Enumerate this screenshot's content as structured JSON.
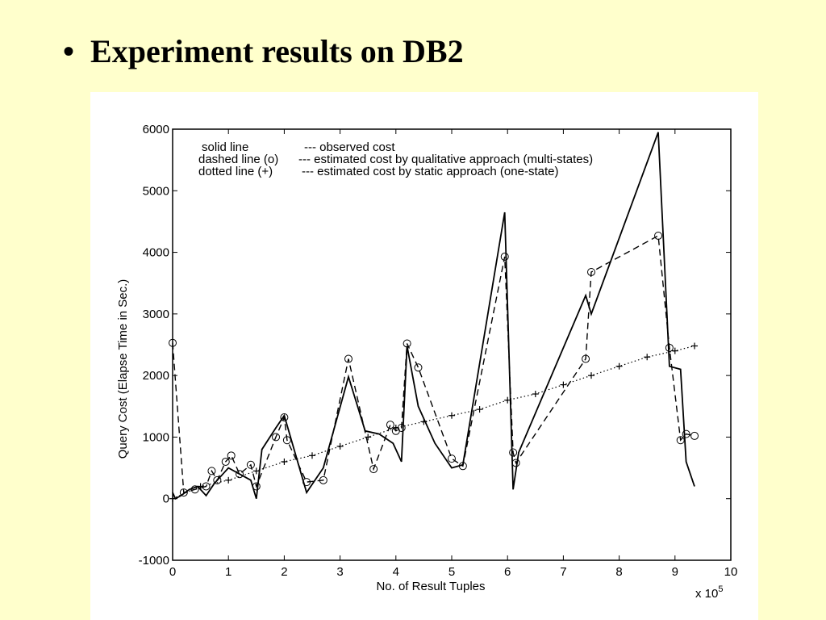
{
  "slide": {
    "bullet": "•",
    "title": "Experiment results on DB2"
  },
  "chart_data": {
    "type": "line",
    "title": "",
    "xlabel": "No. of Result Tuples",
    "ylabel": "Query Cost (Elapse Time in Sec.)",
    "x_multiplier_label": "x 10^5",
    "xlim": [
      0,
      10
    ],
    "ylim": [
      -1000,
      6000
    ],
    "x_ticks": [
      "0",
      "1",
      "2",
      "3",
      "4",
      "5",
      "6",
      "7",
      "8",
      "9",
      "10"
    ],
    "y_ticks": [
      "-1000",
      "0",
      "1000",
      "2000",
      "3000",
      "4000",
      "5000",
      "6000"
    ],
    "grid": false,
    "legend_position": "top-left",
    "legend": [
      {
        "key": "solid line",
        "desc": "--- observed cost"
      },
      {
        "key": "dashed line (o)",
        "desc": "--- estimated cost by qualitative approach (multi-states)"
      },
      {
        "key": "dotted line (+)",
        "desc": "--- estimated cost by static approach (one-state)"
      }
    ],
    "series": [
      {
        "style": "solid",
        "x": [
          0,
          0.05,
          0.15,
          0.3,
          0.45,
          0.6,
          0.75,
          0.9,
          1.0,
          1.2,
          1.4,
          1.5,
          1.6,
          1.85,
          2.0,
          2.4,
          2.7,
          3.15,
          3.45,
          3.7,
          3.95,
          4.1,
          4.2,
          4.4,
          4.7,
          5.0,
          5.2,
          5.95,
          6.1,
          6.2,
          7.4,
          7.5,
          8.7,
          8.9,
          9.1,
          9.2,
          9.35
        ],
        "values": [
          100,
          0,
          50,
          150,
          200,
          50,
          250,
          400,
          500,
          400,
          300,
          0,
          800,
          1150,
          1350,
          100,
          500,
          1980,
          1100,
          1050,
          900,
          600,
          2480,
          1500,
          900,
          500,
          550,
          4650,
          150,
          750,
          3300,
          3000,
          5950,
          2150,
          2100,
          600,
          200
        ]
      },
      {
        "style": "dashed",
        "marker": "o",
        "x": [
          0,
          0.2,
          0.4,
          0.6,
          0.7,
          0.8,
          0.95,
          1.05,
          1.2,
          1.4,
          1.5,
          1.85,
          2.0,
          2.05,
          2.4,
          2.7,
          3.15,
          3.6,
          3.9,
          4.0,
          4.1,
          4.2,
          4.4,
          5.0,
          5.2,
          5.95,
          6.1,
          6.15,
          7.4,
          7.5,
          8.7,
          8.9,
          9.1,
          9.2,
          9.35
        ],
        "values": [
          2530,
          100,
          150,
          200,
          450,
          300,
          600,
          700,
          400,
          550,
          200,
          1000,
          1320,
          950,
          270,
          300,
          2270,
          480,
          1200,
          1100,
          1150,
          2520,
          2130,
          650,
          530,
          3930,
          750,
          580,
          2270,
          3680,
          4270,
          2450,
          950,
          1050,
          1020
        ]
      },
      {
        "style": "dotted",
        "marker": "+",
        "x": [
          0,
          0.5,
          1.0,
          1.5,
          2.0,
          2.5,
          3.0,
          3.5,
          4.0,
          4.5,
          5.0,
          5.5,
          6.0,
          6.5,
          7.0,
          7.5,
          8.0,
          8.5,
          9.0,
          9.35
        ],
        "values": [
          0,
          200,
          300,
          450,
          600,
          700,
          850,
          1000,
          1150,
          1250,
          1350,
          1450,
          1600,
          1700,
          1850,
          2000,
          2150,
          2300,
          2400,
          2480
        ]
      }
    ]
  }
}
